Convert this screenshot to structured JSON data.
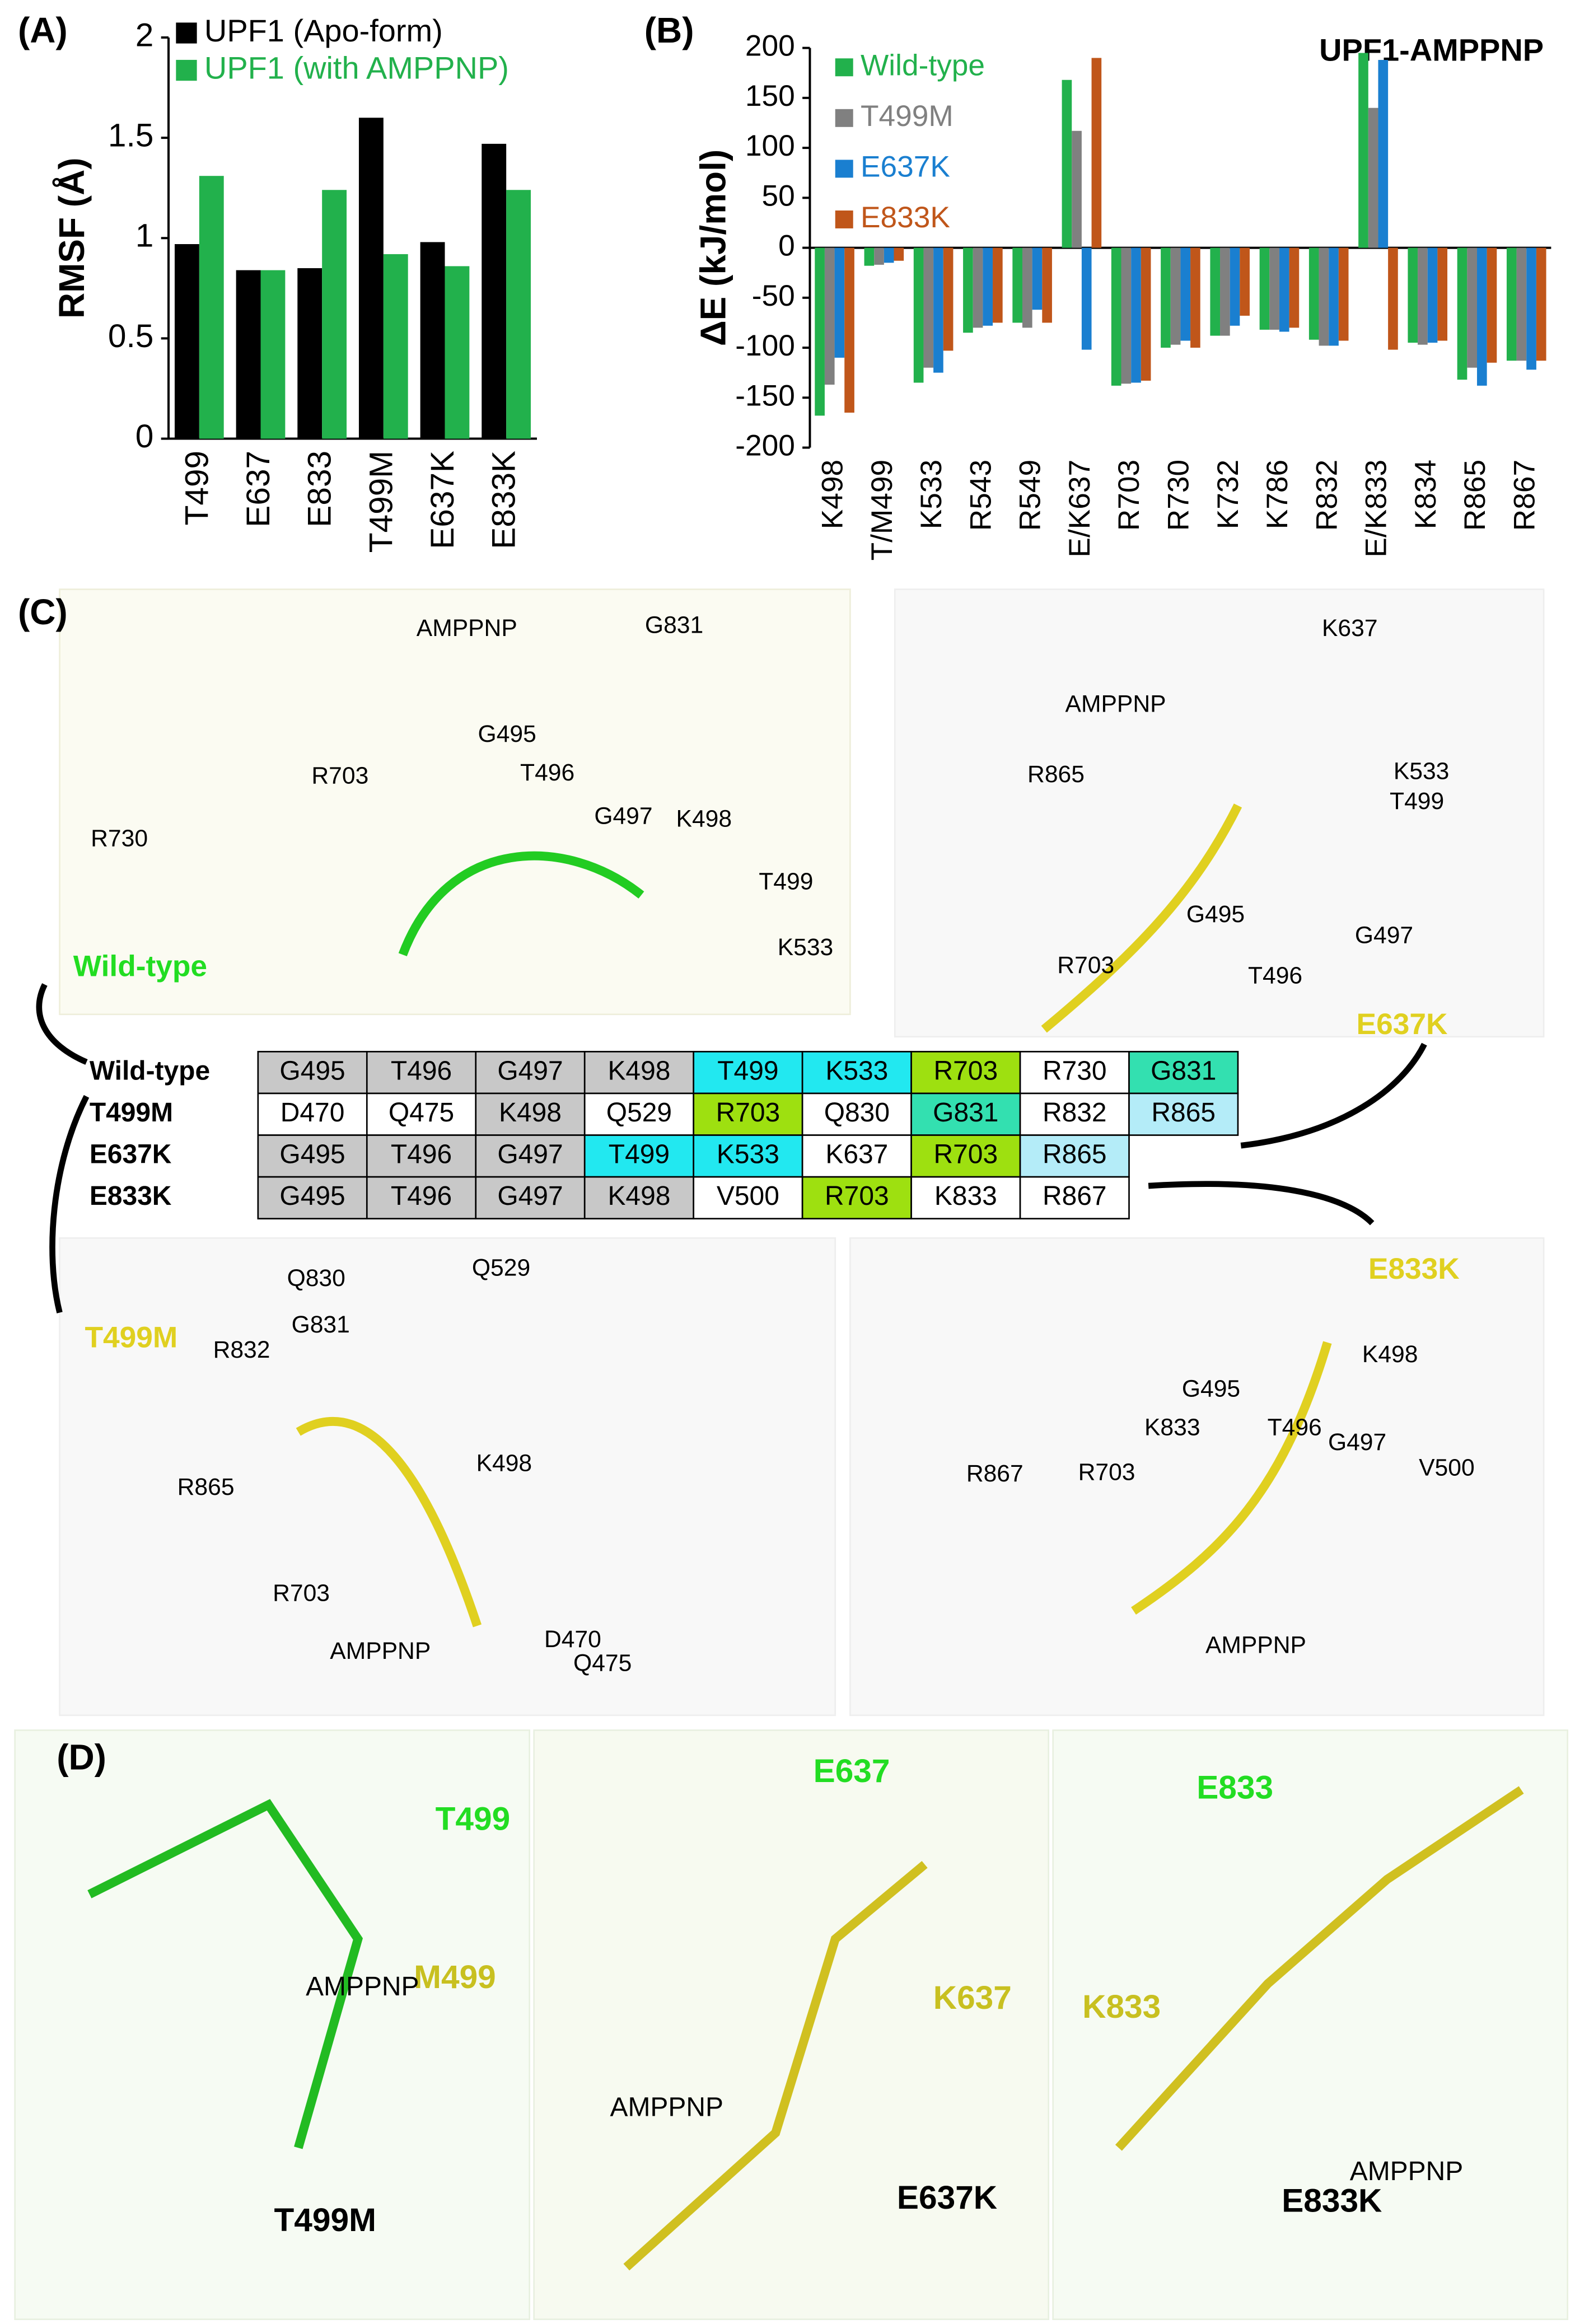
{
  "chart_data": [
    {
      "type": "bar",
      "panel_label": "(A)",
      "y_label": "RMSF (Å)",
      "categories": [
        "T499",
        "E637",
        "E833",
        "T499M",
        "E637K",
        "E833K"
      ],
      "series": [
        {
          "name": "UPF1 (Apo-form)",
          "color": "#000000",
          "values": [
            0.97,
            0.84,
            0.85,
            1.6,
            0.98,
            1.47
          ]
        },
        {
          "name": "UPF1 (with AMPPNP)",
          "color": "#22b14c",
          "values": [
            1.31,
            0.84,
            1.24,
            0.92,
            0.86,
            1.24
          ]
        }
      ],
      "ylim": [
        0,
        2
      ],
      "yticks": [
        0,
        0.5,
        1,
        1.5,
        2
      ]
    },
    {
      "type": "bar",
      "panel_label": "(B)",
      "title": "UPF1-AMPPNP",
      "y_label": "ΔE (kJ/mol)",
      "categories": [
        "K498",
        "T/M499",
        "K533",
        "R543",
        "R549",
        "E/K637",
        "R703",
        "R730",
        "K732",
        "K786",
        "R832",
        "E/K833",
        "K834",
        "R865",
        "R867"
      ],
      "series": [
        {
          "name": "Wild-type",
          "color": "#22b14c",
          "values": [
            -168,
            -18,
            -135,
            -85,
            -75,
            168,
            -138,
            -100,
            -88,
            -82,
            -92,
            195,
            -95,
            -132,
            -113
          ]
        },
        {
          "name": "T499M",
          "color": "#808080",
          "values": [
            -137,
            -17,
            -120,
            -80,
            -80,
            117,
            -136,
            -97,
            -88,
            -82,
            -98,
            140,
            -97,
            -120,
            -113
          ]
        },
        {
          "name": "E637K",
          "color": "#1a7fd0",
          "values": [
            -110,
            -15,
            -125,
            -78,
            -62,
            -102,
            -135,
            -93,
            -78,
            -84,
            -98,
            188,
            -95,
            -138,
            -122
          ]
        },
        {
          "name": "E833K",
          "color": "#c0561a",
          "values": [
            -165,
            -13,
            -103,
            -75,
            -75,
            190,
            -133,
            -100,
            -68,
            -80,
            -93,
            -102,
            -93,
            -115,
            -113
          ]
        }
      ],
      "ylim": [
        -200,
        200
      ],
      "yticks": [
        -200,
        -150,
        -100,
        -50,
        0,
        50,
        100,
        150,
        200
      ]
    }
  ],
  "table": {
    "row_labels": [
      "Wild-type",
      "T499M",
      "E637K",
      "E833K"
    ],
    "rows": [
      [
        {
          "text": "G495",
          "color": "#c8c8c8"
        },
        {
          "text": "T496",
          "color": "#c8c8c8"
        },
        {
          "text": "G497",
          "color": "#c8c8c8"
        },
        {
          "text": "K498",
          "color": "#c8c8c8"
        },
        {
          "text": "T499",
          "color": "#22e8f0"
        },
        {
          "text": "K533",
          "color": "#22e8f0"
        },
        {
          "text": "R703",
          "color": "#9ee010"
        },
        {
          "text": "R730",
          "color": "#ffffff"
        },
        {
          "text": "G831",
          "color": "#33e0b0"
        }
      ],
      [
        {
          "text": "D470",
          "color": "#ffffff"
        },
        {
          "text": "Q475",
          "color": "#ffffff"
        },
        {
          "text": "K498",
          "color": "#c8c8c8"
        },
        {
          "text": "Q529",
          "color": "#ffffff"
        },
        {
          "text": "R703",
          "color": "#9ee010"
        },
        {
          "text": "Q830",
          "color": "#ffffff"
        },
        {
          "text": "G831",
          "color": "#33e0b0"
        },
        {
          "text": "R832",
          "color": "#ffffff"
        },
        {
          "text": "R865",
          "color": "#b4ecf8"
        }
      ],
      [
        {
          "text": "G495",
          "color": "#c8c8c8"
        },
        {
          "text": "T496",
          "color": "#c8c8c8"
        },
        {
          "text": "G497",
          "color": "#c8c8c8"
        },
        {
          "text": "T499",
          "color": "#22e8f0"
        },
        {
          "text": "K533",
          "color": "#22e8f0"
        },
        {
          "text": "K637",
          "color": "#ffffff"
        },
        {
          "text": "R703",
          "color": "#9ee010"
        },
        {
          "text": "R865",
          "color": "#b4ecf8"
        }
      ],
      [
        {
          "text": "G495",
          "color": "#c8c8c8"
        },
        {
          "text": "T496",
          "color": "#c8c8c8"
        },
        {
          "text": "G497",
          "color": "#c8c8c8"
        },
        {
          "text": "K498",
          "color": "#c8c8c8"
        },
        {
          "text": "V500",
          "color": "#ffffff"
        },
        {
          "text": "R703",
          "color": "#9ee010"
        },
        {
          "text": "K833",
          "color": "#ffffff"
        },
        {
          "text": "R867",
          "color": "#ffffff"
        }
      ]
    ]
  },
  "panel_c": {
    "label": "(C)",
    "views": [
      {
        "state": "Wild-type",
        "state_color": "#22dd22",
        "labels": [
          "AMPPNP",
          "G831",
          "G495",
          "R703",
          "T496",
          "G497",
          "K498",
          "R730",
          "T499",
          "K533"
        ]
      },
      {
        "state": "E637K",
        "state_color": "#e0d020",
        "labels": [
          "K637",
          "AMPPNP",
          "R865",
          "K533",
          "T499",
          "R703",
          "G495",
          "G497",
          "T496"
        ]
      },
      {
        "state": "T499M",
        "state_color": "#e0d020",
        "labels": [
          "Q830",
          "Q529",
          "G831",
          "R832",
          "R865",
          "K498",
          "R703",
          "AMPPNP",
          "D470",
          "Q475"
        ]
      },
      {
        "state": "E833K",
        "state_color": "#e0d020",
        "labels": [
          "K498",
          "G495",
          "K833",
          "T496",
          "G497",
          "V500",
          "R867",
          "R703",
          "AMPPNP"
        ]
      }
    ]
  },
  "panel_d": {
    "label": "(D)",
    "views": [
      {
        "mutation": "T499M",
        "labels": [
          {
            "text": "T499",
            "color": "#22dd22"
          },
          {
            "text": "M499",
            "color": "#c8c020"
          },
          {
            "text": "AMPPNP",
            "color": "#000000"
          }
        ]
      },
      {
        "mutation": "E637K",
        "labels": [
          {
            "text": "E637",
            "color": "#22dd22"
          },
          {
            "text": "K637",
            "color": "#c8c020"
          },
          {
            "text": "AMPPNP",
            "color": "#000000"
          }
        ]
      },
      {
        "mutation": "E833K",
        "labels": [
          {
            "text": "E833",
            "color": "#22dd22"
          },
          {
            "text": "K833",
            "color": "#c8c020"
          },
          {
            "text": "AMPPNP",
            "color": "#000000"
          }
        ]
      }
    ]
  }
}
